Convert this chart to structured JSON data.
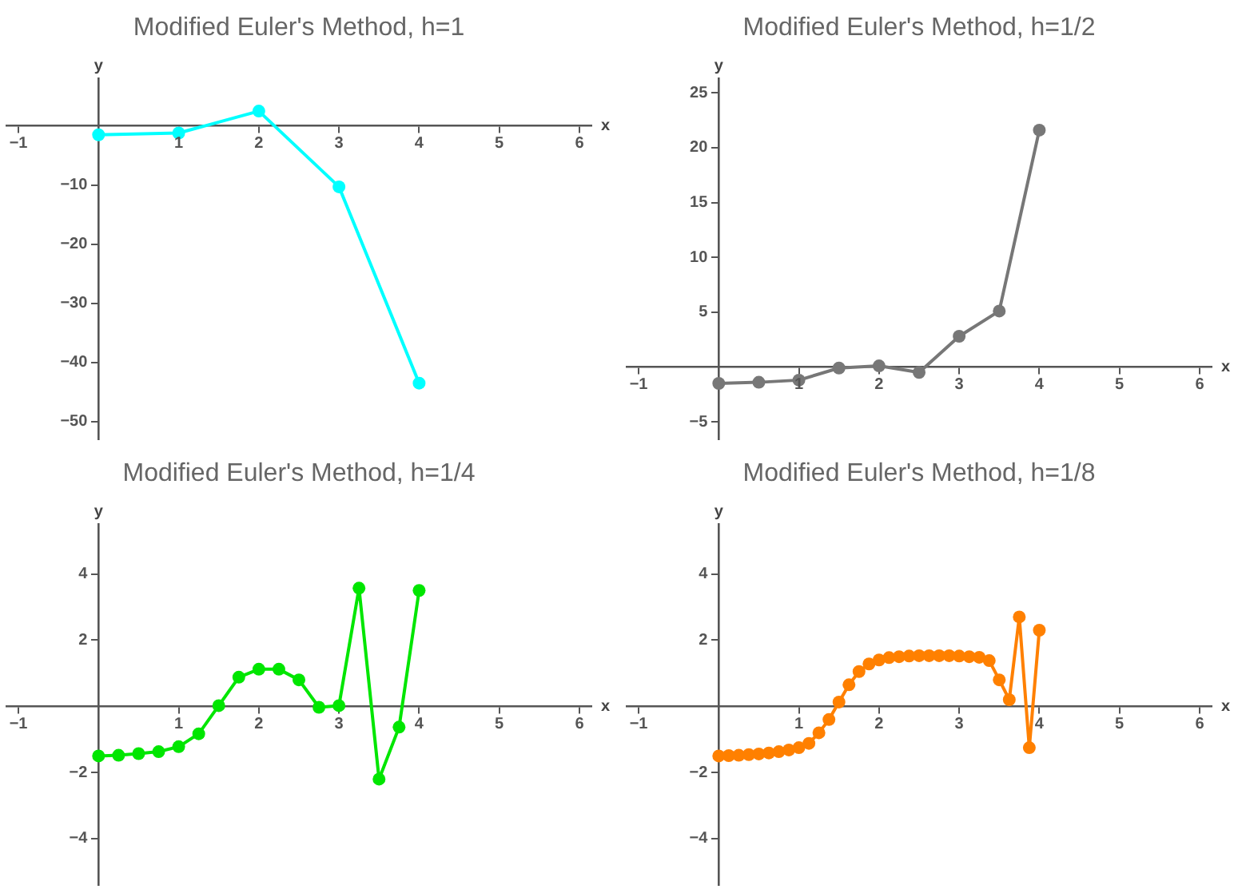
{
  "chart_data": [
    {
      "type": "line",
      "title": "Modified Euler's Method, h=1",
      "xlabel": "x",
      "ylabel": "y",
      "marker": "circle",
      "grid": false,
      "x": [
        0,
        1,
        2,
        3,
        4
      ],
      "series": [
        {
          "color": "#00ffff",
          "values": [
            -1.5,
            -1.2,
            2.5,
            -10.3,
            -43.5
          ]
        }
      ],
      "xlim": [
        -1.15,
        6.15
      ],
      "ylim": [
        -53,
        8
      ],
      "xticks": [
        -1,
        1,
        2,
        3,
        4,
        5,
        6
      ],
      "yticks": [
        -50,
        -40,
        -30,
        -20,
        -10
      ]
    },
    {
      "type": "line",
      "title": "Modified Euler's Method, h=1/2",
      "xlabel": "x",
      "ylabel": "y",
      "marker": "circle",
      "grid": false,
      "x": [
        0,
        0.5,
        1,
        1.5,
        2,
        2.5,
        3,
        3.5,
        4
      ],
      "series": [
        {
          "color": "#777777",
          "values": [
            -1.5,
            -1.4,
            -1.2,
            -0.1,
            0.1,
            -0.5,
            2.8,
            5.1,
            21.6
          ]
        }
      ],
      "xlim": [
        -1.15,
        6.15
      ],
      "ylim": [
        -6.6,
        26.3
      ],
      "xticks": [
        -1,
        1,
        2,
        3,
        4,
        5,
        6
      ],
      "yticks": [
        -5,
        5,
        10,
        15,
        20,
        25
      ]
    },
    {
      "type": "line",
      "title": "Modified Euler's Method, h=1/4",
      "xlabel": "x",
      "ylabel": "y",
      "marker": "circle",
      "grid": false,
      "x": [
        0,
        0.25,
        0.5,
        0.75,
        1,
        1.25,
        1.5,
        1.75,
        2,
        2.25,
        2.5,
        2.75,
        3,
        3.25,
        3.5,
        3.75,
        4
      ],
      "series": [
        {
          "color": "#00e600",
          "values": [
            -1.5,
            -1.48,
            -1.43,
            -1.37,
            -1.22,
            -0.83,
            0.02,
            0.88,
            1.12,
            1.12,
            0.8,
            -0.03,
            0.02,
            3.57,
            -2.2,
            -0.63,
            3.5
          ]
        }
      ],
      "xlim": [
        -1.15,
        6.15
      ],
      "ylim": [
        -5.4,
        5.5
      ],
      "xticks": [
        -1,
        1,
        2,
        3,
        4,
        5,
        6
      ],
      "yticks": [
        -4,
        -2,
        2,
        4
      ]
    },
    {
      "type": "line",
      "title": "Modified Euler's Method, h=1/8",
      "xlabel": "x",
      "ylabel": "y",
      "marker": "circle",
      "grid": false,
      "x": [
        0,
        0.125,
        0.25,
        0.375,
        0.5,
        0.625,
        0.75,
        0.875,
        1,
        1.125,
        1.25,
        1.375,
        1.5,
        1.625,
        1.75,
        1.875,
        2,
        2.125,
        2.25,
        2.375,
        2.5,
        2.625,
        2.75,
        2.875,
        3,
        3.125,
        3.25,
        3.375,
        3.5,
        3.625,
        3.75,
        3.875,
        4
      ],
      "series": [
        {
          "color": "#ff8000",
          "values": [
            -1.5,
            -1.49,
            -1.48,
            -1.46,
            -1.44,
            -1.41,
            -1.37,
            -1.32,
            -1.25,
            -1.12,
            -0.8,
            -0.4,
            0.13,
            0.65,
            1.05,
            1.28,
            1.4,
            1.47,
            1.5,
            1.52,
            1.53,
            1.53,
            1.53,
            1.53,
            1.52,
            1.5,
            1.48,
            1.38,
            0.8,
            0.2,
            2.7,
            -1.25,
            2.3
          ]
        }
      ],
      "xlim": [
        -1.15,
        6.15
      ],
      "ylim": [
        -5.4,
        5.5
      ],
      "xticks": [
        -1,
        1,
        2,
        3,
        4,
        5,
        6
      ],
      "yticks": [
        -4,
        -2,
        2,
        4
      ]
    }
  ]
}
